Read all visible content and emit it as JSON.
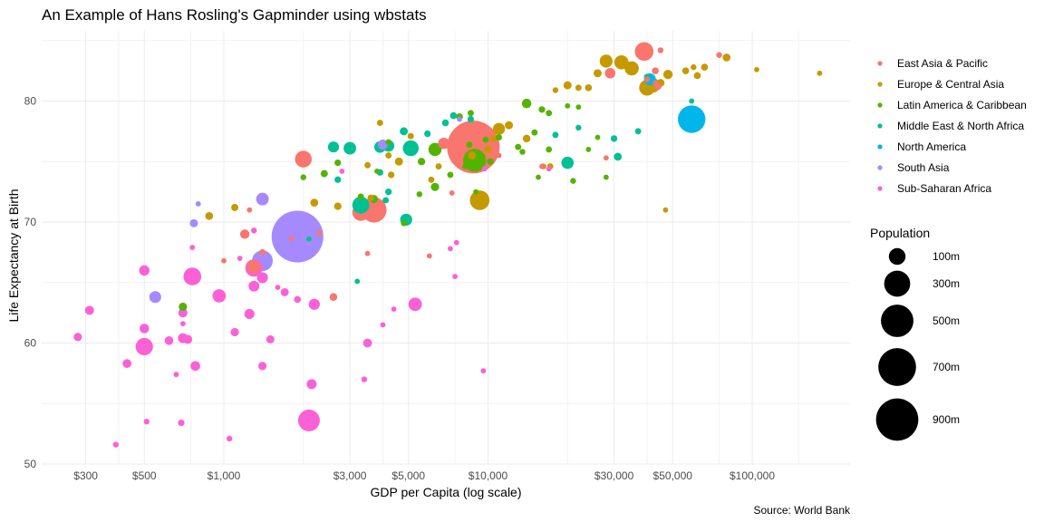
{
  "chart_data": {
    "type": "scatter",
    "title": "An Example of Hans Rosling's Gapminder using wbstats",
    "xlabel": "GDP per Capita (log scale)",
    "ylabel": "Life Expectancy at Birth",
    "caption": "Source: World Bank",
    "x_scale": "log10",
    "xlim": [
      210,
      230000
    ],
    "ylim": [
      49.5,
      86
    ],
    "x_ticks": [
      {
        "value": 300,
        "label": "$300"
      },
      {
        "value": 500,
        "label": "$500"
      },
      {
        "value": 1000,
        "label": "$1,000"
      },
      {
        "value": 3000,
        "label": "$3,000"
      },
      {
        "value": 5000,
        "label": "$5,000"
      },
      {
        "value": 10000,
        "label": "$10,000"
      },
      {
        "value": 30000,
        "label": "$30,000"
      },
      {
        "value": 50000,
        "label": "$50,000"
      },
      {
        "value": 100000,
        "label": "$100,000"
      }
    ],
    "x_minor": [
      400,
      750,
      2000,
      4000,
      7500,
      20000,
      40000,
      75000,
      150000
    ],
    "y_ticks": [
      {
        "value": 50,
        "label": "50"
      },
      {
        "value": 60,
        "label": "60"
      },
      {
        "value": 70,
        "label": "70"
      },
      {
        "value": 80,
        "label": "80"
      }
    ],
    "y_minor": [
      55,
      65,
      75,
      85
    ],
    "grid": true,
    "legend": {
      "placement": "right",
      "color_title": "",
      "regions": [
        {
          "name": "East Asia & Pacific",
          "color": "#F8766D"
        },
        {
          "name": "Europe & Central Asia",
          "color": "#C49A00"
        },
        {
          "name": "Latin America & Caribbean",
          "color": "#53B400"
        },
        {
          "name": "Middle East & North Africa",
          "color": "#00C094"
        },
        {
          "name": "North America",
          "color": "#00B6EB"
        },
        {
          "name": "South Asia",
          "color": "#A58AFF"
        },
        {
          "name": "Sub-Saharan Africa",
          "color": "#FB61D7"
        }
      ],
      "size_title": "Population",
      "sizes": [
        {
          "value": 100,
          "label": "100m"
        },
        {
          "value": 300,
          "label": "300m"
        },
        {
          "value": 500,
          "label": "500m"
        },
        {
          "value": 700,
          "label": "700m"
        },
        {
          "value": 900,
          "label": "900m"
        }
      ]
    },
    "series": [
      {
        "name": "East Asia & Pacific",
        "points": [
          [
            8800,
            76.2,
            1390
          ],
          [
            39000,
            84.1,
            126
          ],
          [
            3300,
            70.8,
            100
          ],
          [
            3700,
            71.0,
            265
          ],
          [
            2000,
            75.2,
            96
          ],
          [
            6800,
            76.5,
            32
          ],
          [
            1300,
            66.3,
            54
          ],
          [
            29000,
            82.3,
            25
          ],
          [
            43000,
            82.5,
            5
          ],
          [
            45000,
            84.2,
            2
          ],
          [
            1200,
            69.0,
            17
          ],
          [
            1400,
            67.5,
            3
          ],
          [
            1000,
            66.8,
            1
          ],
          [
            2600,
            63.8,
            8
          ],
          [
            6000,
            67.2,
            1
          ],
          [
            3500,
            67.4,
            1
          ],
          [
            1800,
            68.6,
            1
          ],
          [
            40000,
            81.8,
            2
          ],
          [
            44000,
            81.2,
            5
          ],
          [
            75000,
            83.8,
            2
          ],
          [
            43000,
            81.5,
            1
          ],
          [
            2300,
            69.1,
            1
          ],
          [
            7300,
            72.4,
            1
          ],
          [
            16000,
            74.6,
            1
          ],
          [
            28000,
            75.3,
            1
          ],
          [
            11000,
            75.5,
            1
          ],
          [
            1250,
            71.0,
            1
          ]
        ]
      },
      {
        "name": "Europe & Central Asia",
        "points": [
          [
            28000,
            83.3,
            47
          ],
          [
            26000,
            82.3,
            10
          ],
          [
            40000,
            81.1,
            82
          ],
          [
            45000,
            81.5,
            9
          ],
          [
            35000,
            82.7,
            60
          ],
          [
            32000,
            83.2,
            61
          ],
          [
            42000,
            81.3,
            67
          ],
          [
            48000,
            82.2,
            17
          ],
          [
            56000,
            82.5,
            5
          ],
          [
            60000,
            82.8,
            2
          ],
          [
            62000,
            82.1,
            5
          ],
          [
            66000,
            82.8,
            5
          ],
          [
            80000,
            83.6,
            9
          ],
          [
            104000,
            82.6,
            1
          ],
          [
            180000,
            82.3,
            1
          ],
          [
            20000,
            81.3,
            10
          ],
          [
            22000,
            81.1,
            3
          ],
          [
            24000,
            81.1,
            5
          ],
          [
            18000,
            80.9,
            2
          ],
          [
            11000,
            77.7,
            38
          ],
          [
            12000,
            78.0,
            10
          ],
          [
            14000,
            76.9,
            8
          ],
          [
            10500,
            76.9,
            4
          ],
          [
            9300,
            71.8,
            144
          ],
          [
            6500,
            74.6,
            3
          ],
          [
            10000,
            76.0,
            7
          ],
          [
            8700,
            75.5,
            10
          ],
          [
            3900,
            78.2,
            3
          ],
          [
            5100,
            77.1,
            3
          ],
          [
            2200,
            71.6,
            9
          ],
          [
            2700,
            71.3,
            7
          ],
          [
            4200,
            75.5,
            3
          ],
          [
            4300,
            73.9,
            4
          ],
          [
            3500,
            74.7,
            3
          ],
          [
            4600,
            75.0,
            10
          ],
          [
            880,
            70.5,
            9
          ],
          [
            1100,
            71.2,
            6
          ],
          [
            3600,
            72.0,
            4
          ],
          [
            6100,
            73.5,
            3
          ],
          [
            16200,
            74.6,
            2
          ],
          [
            17200,
            74.6,
            3
          ],
          [
            47000,
            71.0,
            1
          ]
        ]
      },
      {
        "name": "Latin America & Caribbean",
        "points": [
          [
            8900,
            75.1,
            210
          ],
          [
            9500,
            75.4,
            4
          ],
          [
            8500,
            76.4,
            3
          ],
          [
            7800,
            78.7,
            5
          ],
          [
            8600,
            79.0,
            3
          ],
          [
            14000,
            79.8,
            18
          ],
          [
            15000,
            77.4,
            3
          ],
          [
            11000,
            77.0,
            3
          ],
          [
            17000,
            76.0,
            3
          ],
          [
            8200,
            74.6,
            2
          ],
          [
            10200,
            75.0,
            4
          ],
          [
            9800,
            76.8,
            3
          ],
          [
            6300,
            76.0,
            50
          ],
          [
            5600,
            75.0,
            7
          ],
          [
            7200,
            73.9,
            3
          ],
          [
            6300,
            72.9,
            11
          ],
          [
            4200,
            76.6,
            2
          ],
          [
            3800,
            74.2,
            1
          ],
          [
            2400,
            74.0,
            6
          ],
          [
            2000,
            73.7,
            2
          ],
          [
            2700,
            74.9,
            4
          ],
          [
            3700,
            71.9,
            10
          ],
          [
            3300,
            72.1,
            3
          ],
          [
            4800,
            69.9,
            2
          ],
          [
            5500,
            72.3,
            2
          ],
          [
            700,
            63.0,
            11
          ],
          [
            16000,
            79.3,
            4
          ],
          [
            13000,
            76.2,
            3
          ],
          [
            13500,
            75.8,
            2
          ],
          [
            21000,
            73.4,
            2
          ],
          [
            28000,
            73.7,
            1
          ],
          [
            24000,
            76.0,
            1
          ],
          [
            20000,
            79.6,
            1
          ],
          [
            17000,
            79.0,
            3
          ],
          [
            15500,
            73.7,
            1
          ],
          [
            22000,
            79.5,
            1
          ],
          [
            26000,
            77.0,
            1
          ],
          [
            9000,
            72.5,
            1
          ]
        ]
      },
      {
        "name": "Middle East & North Africa",
        "points": [
          [
            5100,
            76.1,
            82
          ],
          [
            3900,
            76.2,
            33
          ],
          [
            3000,
            76.1,
            43
          ],
          [
            4200,
            76.3,
            35
          ],
          [
            20000,
            74.9,
            40
          ],
          [
            2600,
            76.2,
            29
          ],
          [
            3300,
            71.4,
            100
          ],
          [
            4900,
            70.2,
            38
          ],
          [
            3900,
            74.1,
            4
          ],
          [
            4800,
            77.5,
            10
          ],
          [
            2700,
            73.5,
            4
          ],
          [
            6900,
            78.2,
            5
          ],
          [
            5900,
            77.3,
            4
          ],
          [
            8600,
            78.5,
            4
          ],
          [
            7400,
            78.8,
            5
          ],
          [
            18000,
            77.2,
            3
          ],
          [
            37000,
            77.5,
            3
          ],
          [
            59000,
            80.0,
            1
          ],
          [
            3200,
            65.1,
            1
          ],
          [
            4100,
            71.8,
            3
          ],
          [
            4200,
            72.5,
            4
          ],
          [
            30000,
            76.9,
            4
          ],
          [
            22000,
            77.8,
            2
          ],
          [
            40000,
            82.0,
            3
          ],
          [
            2100,
            68.6,
            1
          ],
          [
            31000,
            75.4,
            9
          ]
        ]
      },
      {
        "name": "North America",
        "points": [
          [
            59000,
            78.5,
            325
          ],
          [
            41000,
            81.8,
            37
          ]
        ]
      },
      {
        "name": "South Asia",
        "points": [
          [
            1900,
            68.8,
            1340
          ],
          [
            1400,
            71.9,
            44
          ],
          [
            1400,
            66.8,
            165
          ],
          [
            770,
            69.9,
            10
          ],
          [
            550,
            63.8,
            37
          ],
          [
            4000,
            76.4,
            21
          ],
          [
            7800,
            78.5,
            1
          ],
          [
            800,
            71.5,
            1
          ]
        ]
      },
      {
        "name": "Sub-Saharan Africa",
        "points": [
          [
            2100,
            53.6,
            186
          ],
          [
            1300,
            66.2,
            105
          ],
          [
            760,
            65.5,
            112
          ],
          [
            500,
            59.7,
            105
          ],
          [
            960,
            63.9,
            51
          ],
          [
            2200,
            63.2,
            30
          ],
          [
            3500,
            60.0,
            14
          ],
          [
            5300,
            63.2,
            53
          ],
          [
            1700,
            64.2,
            10
          ],
          [
            1400,
            58.1,
            11
          ],
          [
            1500,
            60.3,
            10
          ],
          [
            1100,
            60.9,
            11
          ],
          [
            730,
            60.3,
            15
          ],
          [
            700,
            62.5,
            16
          ],
          [
            780,
            58.1,
            19
          ],
          [
            700,
            60.4,
            21
          ],
          [
            620,
            60.2,
            13
          ],
          [
            500,
            66.0,
            24
          ],
          [
            500,
            61.2,
            18
          ],
          [
            430,
            58.3,
            14
          ],
          [
            310,
            62.7,
            15
          ],
          [
            280,
            60.5,
            11
          ],
          [
            390,
            51.6,
            2
          ],
          [
            510,
            53.5,
            2
          ],
          [
            690,
            53.4,
            4
          ],
          [
            1050,
            52.1,
            2
          ],
          [
            2150,
            56.6,
            21
          ],
          [
            1300,
            64.7,
            27
          ],
          [
            1400,
            65.4,
            29
          ],
          [
            1250,
            62.4,
            22
          ],
          [
            1300,
            69.3,
            2
          ],
          [
            3400,
            57.0,
            2
          ],
          [
            760,
            67.9,
            1
          ],
          [
            660,
            57.4,
            1
          ],
          [
            700,
            61.6,
            1
          ],
          [
            4400,
            62.8,
            1
          ],
          [
            7500,
            65.5,
            1
          ],
          [
            7600,
            68.3,
            1
          ],
          [
            9600,
            57.7,
            1
          ],
          [
            9700,
            74.4,
            1
          ],
          [
            17000,
            74.4,
            1
          ],
          [
            1900,
            63.6,
            5
          ],
          [
            4000,
            61.5,
            1
          ],
          [
            2800,
            74.2,
            1
          ],
          [
            1150,
            67.0,
            1
          ],
          [
            1600,
            64.6,
            1
          ],
          [
            7200,
            67.8,
            1
          ]
        ]
      }
    ]
  }
}
